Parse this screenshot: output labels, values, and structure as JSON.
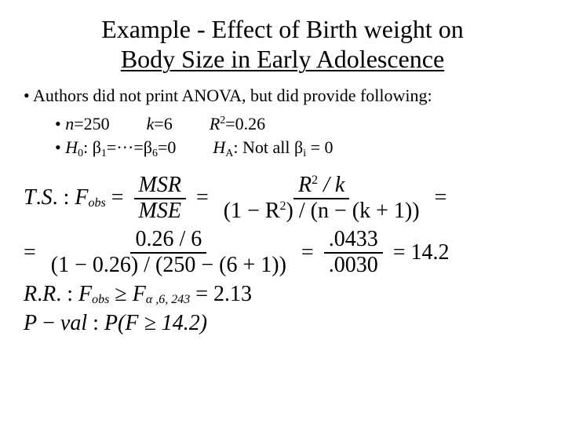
{
  "title_line1": "Example - Effect of Birth weight on",
  "title_line2": "Body Size in Early Adolescence",
  "bullet1": "Authors did not print ANOVA, but did provide following:",
  "n_label": "n",
  "n_eq": "=250",
  "k_label": "k",
  "k_eq": "=6",
  "R2_label": "R",
  "R2_eq": "=0.26",
  "H0_label": "H",
  "H0_text": ": ",
  "beta": "β",
  "HA_text": ": Not all ",
  "eq0": " = 0",
  "TS_label": "T.S. :",
  "Fobs": "F",
  "Fobs_sub": "obs",
  "MSR": "MSR",
  "MSE": "MSE",
  "R2k_num": "R",
  "R2k_num_tail": " / k",
  "R2k_den_a": "(1 − R",
  "R2k_den_b": ") / (n − (k + 1))",
  "step2_num": "0.26 / 6",
  "step2_den": "(1 − 0.26) / (250 − (6 + 1))",
  "step3_num": ".0433",
  "step3_den": ".0030",
  "result": "= 14.2",
  "RR_label": "R.R. :",
  "Fcrit_sub": "α ,6, 243",
  "Fcrit_val": "= 2.13",
  "Pval_label": "P − val :",
  "Pval_expr_a": "P(F ≥ 14.2)",
  "dots": "···",
  "eq": "=",
  "geq": "≥"
}
